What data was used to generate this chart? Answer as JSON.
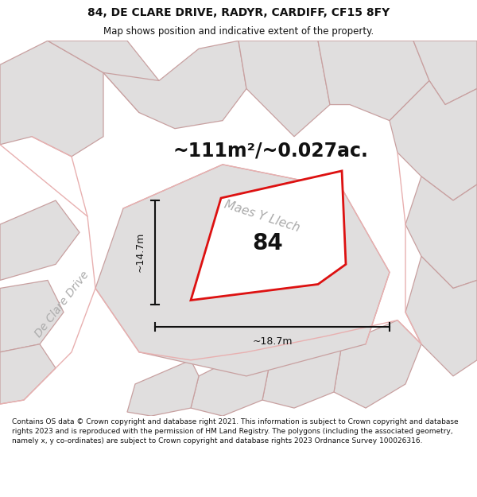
{
  "title": "84, DE CLARE DRIVE, RADYR, CARDIFF, CF15 8FY",
  "subtitle": "Map shows position and indicative extent of the property.",
  "area_text": "~111m²/~0.027ac.",
  "number_label": "84",
  "dim_width": "~18.7m",
  "dim_height": "~14.7m",
  "street_label_1": "Maes Y Llech",
  "street_label_2": "De Clare Drive",
  "footer": "Contains OS data © Crown copyright and database right 2021. This information is subject to Crown copyright and database rights 2023 and is reproduced with the permission of HM Land Registry. The polygons (including the associated geometry, namely x, y co-ordinates) are subject to Crown copyright and database rights 2023 Ordnance Survey 100026316.",
  "bg_color": "#ffffff",
  "map_bg": "#f8f8f8",
  "plot_color_fill": "#f0efef",
  "plot_color_edge": "#dd1111",
  "neighbor_fill": "#e0dede",
  "neighbor_edge": "#c8a0a0",
  "road_line_color": "#e8b0b0",
  "dim_line_color": "#111111",
  "text_color": "#111111",
  "street_text_color": "#aaaaaa"
}
